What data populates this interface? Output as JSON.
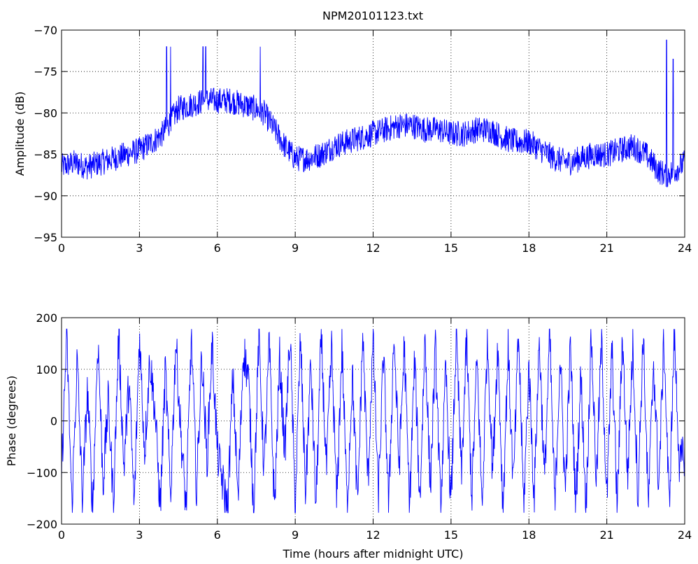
{
  "title": "NPM20101123.txt",
  "chart_data": [
    {
      "type": "line",
      "title": "NPM20101123.txt",
      "xlabel": "",
      "ylabel": "Amplitude (dB)",
      "xlim": [
        0,
        24
      ],
      "ylim": [
        -95,
        -70
      ],
      "xticks": [
        0,
        3,
        6,
        9,
        12,
        15,
        18,
        21,
        24
      ],
      "yticks": [
        -95,
        -90,
        -85,
        -80,
        -75,
        -70
      ],
      "grid": true,
      "color": "#0000ff",
      "series": [
        {
          "x": [
            0,
            0.5,
            1,
            1.5,
            2,
            2.5,
            3,
            3.5,
            3.9,
            4.1,
            4.5,
            5,
            5.5,
            6,
            6.5,
            7,
            7.5,
            7.8,
            8.2,
            8.6,
            9,
            9.5,
            10,
            10.5,
            11,
            11.5,
            12,
            12.5,
            13,
            13.5,
            14,
            14.5,
            15,
            15.5,
            16,
            16.5,
            17,
            17.5,
            18,
            18.5,
            19,
            19.5,
            20,
            20.5,
            21,
            21.5,
            22,
            22.5,
            23,
            23.3,
            23.6,
            24
          ],
          "values": [
            -86.5,
            -86,
            -86.5,
            -86,
            -85.5,
            -85,
            -84.5,
            -83.5,
            -82.5,
            -81.5,
            -79.5,
            -79,
            -78.5,
            -78.5,
            -78.5,
            -79,
            -79.5,
            -80,
            -82,
            -84,
            -85.5,
            -85.5,
            -85,
            -84,
            -83.5,
            -83,
            -82.5,
            -82,
            -81.5,
            -81.5,
            -82,
            -82,
            -82.5,
            -82.5,
            -82,
            -82,
            -83,
            -83.5,
            -83.5,
            -84.5,
            -85.5,
            -86,
            -85.5,
            -85,
            -85,
            -84.5,
            -84,
            -85,
            -87,
            -87.5,
            -87,
            -86
          ]
        }
      ]
    },
    {
      "type": "line",
      "title": "",
      "xlabel": "Time (hours after midnight UTC)",
      "ylabel": "Phase (degrees)",
      "xlim": [
        0,
        24
      ],
      "ylim": [
        -200,
        200
      ],
      "xticks": [
        0,
        3,
        6,
        9,
        12,
        15,
        18,
        21,
        24
      ],
      "yticks": [
        -200,
        -100,
        0,
        100,
        200
      ],
      "grid": true,
      "color": "#0000ff",
      "series": [
        {
          "x": [
            0,
            0.2,
            0.4,
            0.6,
            0.8,
            1,
            1.2,
            1.4,
            1.6,
            1.8,
            2,
            2.2,
            2.4,
            2.6,
            2.8,
            3,
            3.2,
            3.4,
            3.6,
            3.8,
            4,
            4.2,
            4.4,
            4.6,
            4.8,
            5,
            5.2,
            5.4,
            5.6,
            5.8,
            6,
            6.2,
            6.4,
            6.6,
            6.8,
            7,
            7.2,
            7.4,
            7.6,
            7.8,
            8,
            8.2,
            8.4,
            8.6,
            8.8,
            9,
            9.2,
            9.4,
            9.6,
            9.8,
            10,
            10.2,
            10.4,
            10.6,
            10.8,
            11,
            11.2,
            11.4,
            11.6,
            11.8,
            12,
            12.2,
            12.4,
            12.6,
            12.8,
            13,
            13.2,
            13.4,
            13.6,
            13.8,
            14,
            14.2,
            14.4,
            14.6,
            14.8,
            15,
            15.2,
            15.4,
            15.6,
            15.8,
            16,
            16.2,
            16.4,
            16.6,
            16.8,
            17,
            17.2,
            17.4,
            17.6,
            17.8,
            18,
            18.2,
            18.4,
            18.6,
            18.8,
            19,
            19.2,
            19.4,
            19.6,
            19.8,
            20,
            20.2,
            20.4,
            20.6,
            20.8,
            21,
            21.2,
            21.4,
            21.6,
            21.8,
            22,
            22.2,
            22.4,
            22.6,
            22.8,
            23,
            23.2,
            23.4,
            23.6,
            23.8,
            24
          ],
          "values": [
            -100,
            170,
            -170,
            120,
            -150,
            60,
            -170,
            160,
            -120,
            40,
            -160,
            170,
            -90,
            80,
            -170,
            170,
            -60,
            120,
            20,
            -170,
            100,
            -150,
            160,
            -30,
            -170,
            170,
            -140,
            130,
            -80,
            150,
            -60,
            -120,
            -170,
            90,
            -160,
            140,
            80,
            -170,
            170,
            -100,
            150,
            -170,
            120,
            -60,
            170,
            -170,
            160,
            -140,
            110,
            -170,
            170,
            -100,
            140,
            -160,
            150,
            -170,
            90,
            -170,
            170,
            -120,
            160,
            -150,
            130,
            -170,
            170,
            -90,
            150,
            -170,
            120,
            -160,
            170,
            -130,
            140,
            -170,
            100,
            -170,
            170,
            -110,
            160,
            -150,
            120,
            -170,
            170,
            -100,
            150,
            -170,
            140,
            -130,
            170,
            -170,
            110,
            -150,
            160,
            -120,
            170,
            -170,
            130,
            -140,
            150,
            -170,
            90,
            -170,
            170,
            -120,
            160,
            -160,
            140,
            -170,
            170,
            -110,
            150,
            -150,
            170,
            -170,
            120,
            -130,
            160,
            -170,
            170,
            -90,
            -60
          ]
        }
      ]
    }
  ]
}
